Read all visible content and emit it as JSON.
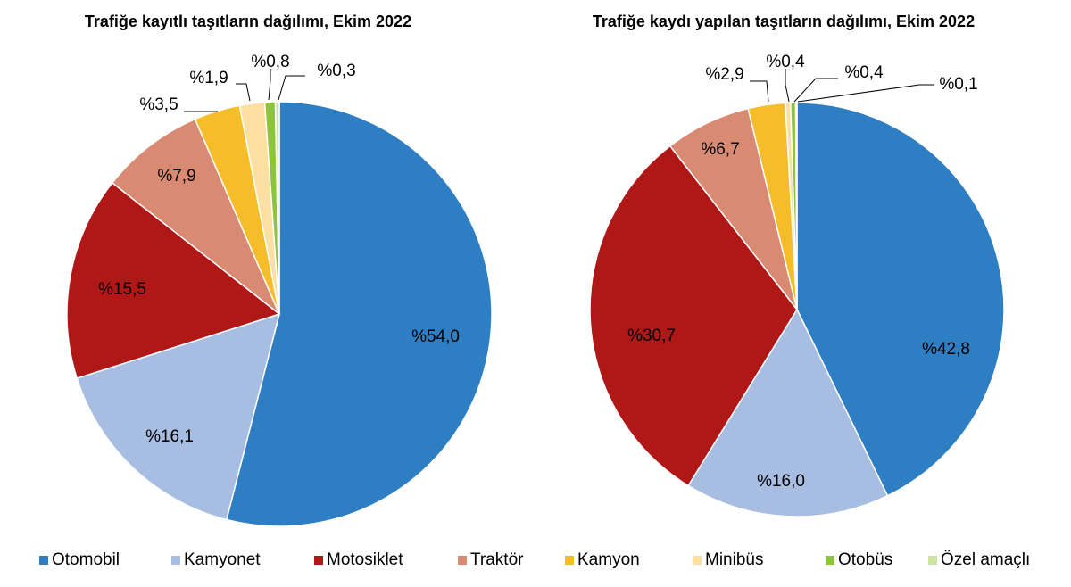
{
  "chart_data": [
    {
      "type": "pie",
      "title": "Trafiğe kayıtlı taşıtların dağılımı, Ekim 2022",
      "categories": [
        "Otomobil",
        "Kamyonet",
        "Motosiklet",
        "Traktör",
        "Kamyon",
        "Minibüs",
        "Otobüs",
        "Özel amaçlı"
      ],
      "values": [
        54.0,
        16.1,
        15.5,
        7.9,
        3.5,
        1.9,
        0.8,
        0.3
      ],
      "labels": [
        "%54,0",
        "%16,1",
        "%15,5",
        "%7,9",
        "%3,5",
        "%1,9",
        "%0,8",
        "%0,3"
      ]
    },
    {
      "type": "pie",
      "title": "Trafiğe kaydı yapılan taşıtların dağılımı, Ekim 2022",
      "categories": [
        "Otomobil",
        "Kamyonet",
        "Motosiklet",
        "Traktör",
        "Kamyon",
        "Minibüs",
        "Otobüs",
        "Özel amaçlı"
      ],
      "values": [
        42.8,
        16.0,
        30.7,
        6.7,
        2.9,
        0.4,
        0.4,
        0.1
      ],
      "labels": [
        "%42,8",
        "%16,0",
        "%30,7",
        "%6,7",
        "%2,9",
        "%0,4",
        "%0,4",
        "%0,1"
      ]
    }
  ],
  "legend": {
    "placement": "bottom",
    "items": [
      "Otomobil",
      "Kamyonet",
      "Motosiklet",
      "Traktör",
      "Kamyon",
      "Minibüs",
      "Otobüs",
      "Özel amaçlı"
    ]
  },
  "colors": [
    "#2e7ec4",
    "#a7bee2",
    "#b01717",
    "#d98a73",
    "#f5bd2a",
    "#fbdfa3",
    "#8ec33c",
    "#cce4a2"
  ]
}
